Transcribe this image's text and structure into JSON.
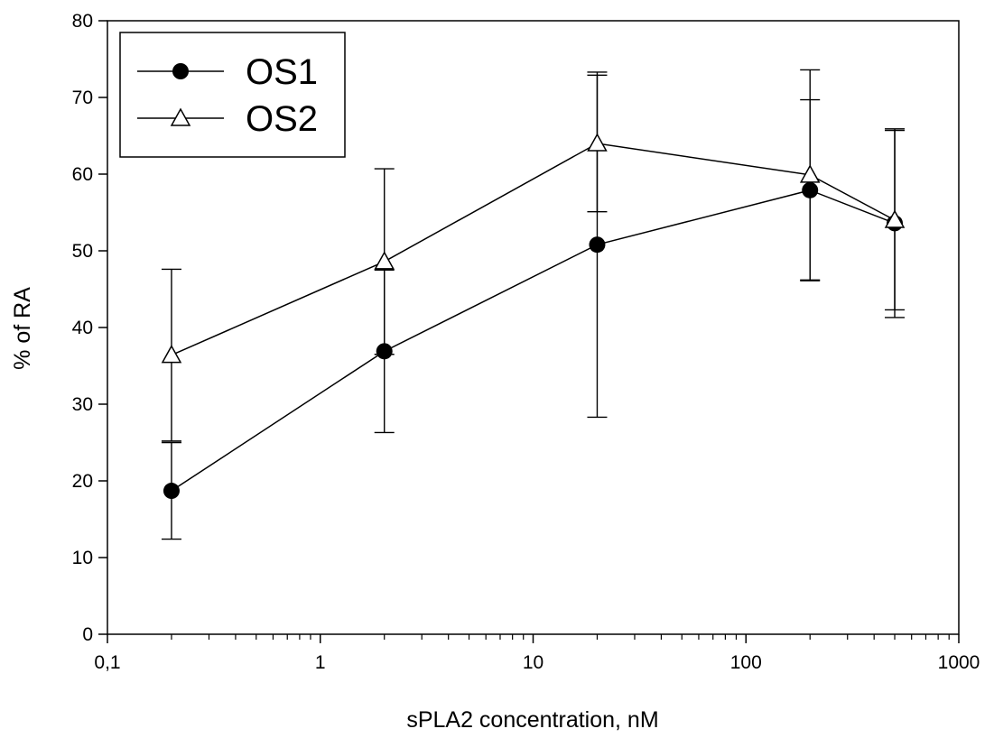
{
  "chart_data": {
    "type": "line",
    "xlabel": "sPLA2 concentration, nM",
    "ylabel": "% of RA",
    "xscale": "log",
    "xlim": [
      0.1,
      1000
    ],
    "ylim": [
      0,
      80
    ],
    "x_ticks": [
      0.1,
      1,
      10,
      100,
      1000
    ],
    "x_tick_labels": [
      "0,1",
      "1",
      "10",
      "100",
      "1000"
    ],
    "y_ticks": [
      0,
      10,
      20,
      30,
      40,
      50,
      60,
      70,
      80
    ],
    "y_tick_labels": [
      "0",
      "10",
      "20",
      "30",
      "40",
      "50",
      "60",
      "70",
      "80"
    ],
    "grid": false,
    "legend_position": "top-left",
    "series": [
      {
        "name": "OS1",
        "marker": "filled-circle",
        "x": [
          0.2,
          2,
          20,
          200,
          500
        ],
        "y": [
          18.7,
          36.9,
          50.8,
          57.9,
          53.6
        ],
        "error": [
          6.3,
          10.6,
          22.5,
          11.8,
          12.3
        ]
      },
      {
        "name": "OS2",
        "marker": "open-triangle",
        "x": [
          0.2,
          2,
          20,
          200,
          500
        ],
        "y": [
          36.4,
          48.6,
          64.0,
          59.9,
          54.0
        ],
        "error": [
          11.2,
          12.1,
          8.9,
          13.7,
          11.7
        ]
      }
    ]
  }
}
